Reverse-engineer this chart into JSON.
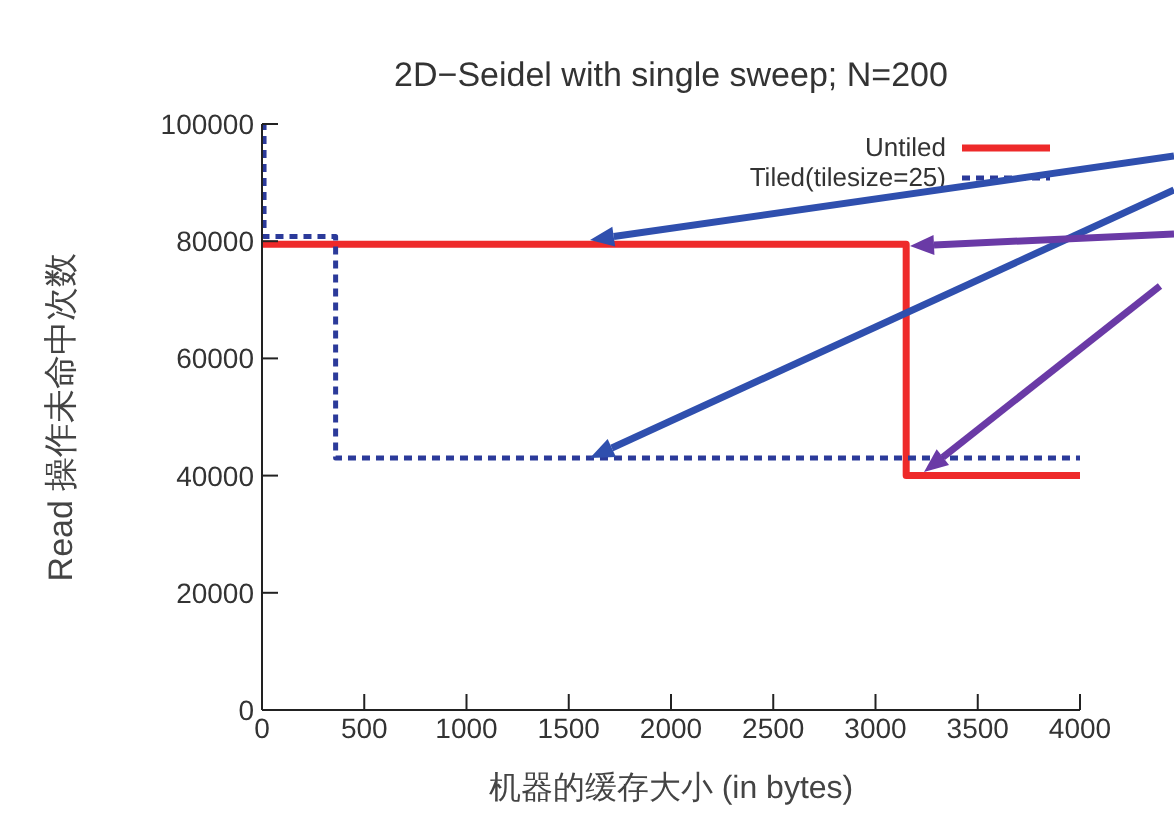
{
  "chart_data": {
    "type": "step",
    "title": "2D−Seidel with single sweep; N=200",
    "xlabel": "机器的缓存大小 (in bytes)",
    "ylabel": "Read 操作未命中次数",
    "series": [
      {
        "name": "Untiled",
        "color": "#ee2a2a",
        "line_style": "solid",
        "x": [
          0,
          3150,
          4000
        ],
        "values": [
          79500,
          40000,
          40000
        ]
      },
      {
        "name": "Tiled(tilesize=25)",
        "color": "#2b3a9a",
        "line_style": "dashed",
        "x": [
          0,
          10,
          360,
          4000
        ],
        "values": [
          100000,
          80800,
          43000,
          43000
        ]
      }
    ],
    "xlim": [
      0,
      4000
    ],
    "xticks": [
      0,
      500,
      1000,
      1500,
      2000,
      2500,
      3000,
      3500,
      4000
    ],
    "ylim": [
      0,
      100000
    ],
    "yticks": [
      0,
      20000,
      40000,
      60000,
      80000,
      100000
    ],
    "grid": false,
    "legend": "top right",
    "marker": "none"
  }
}
